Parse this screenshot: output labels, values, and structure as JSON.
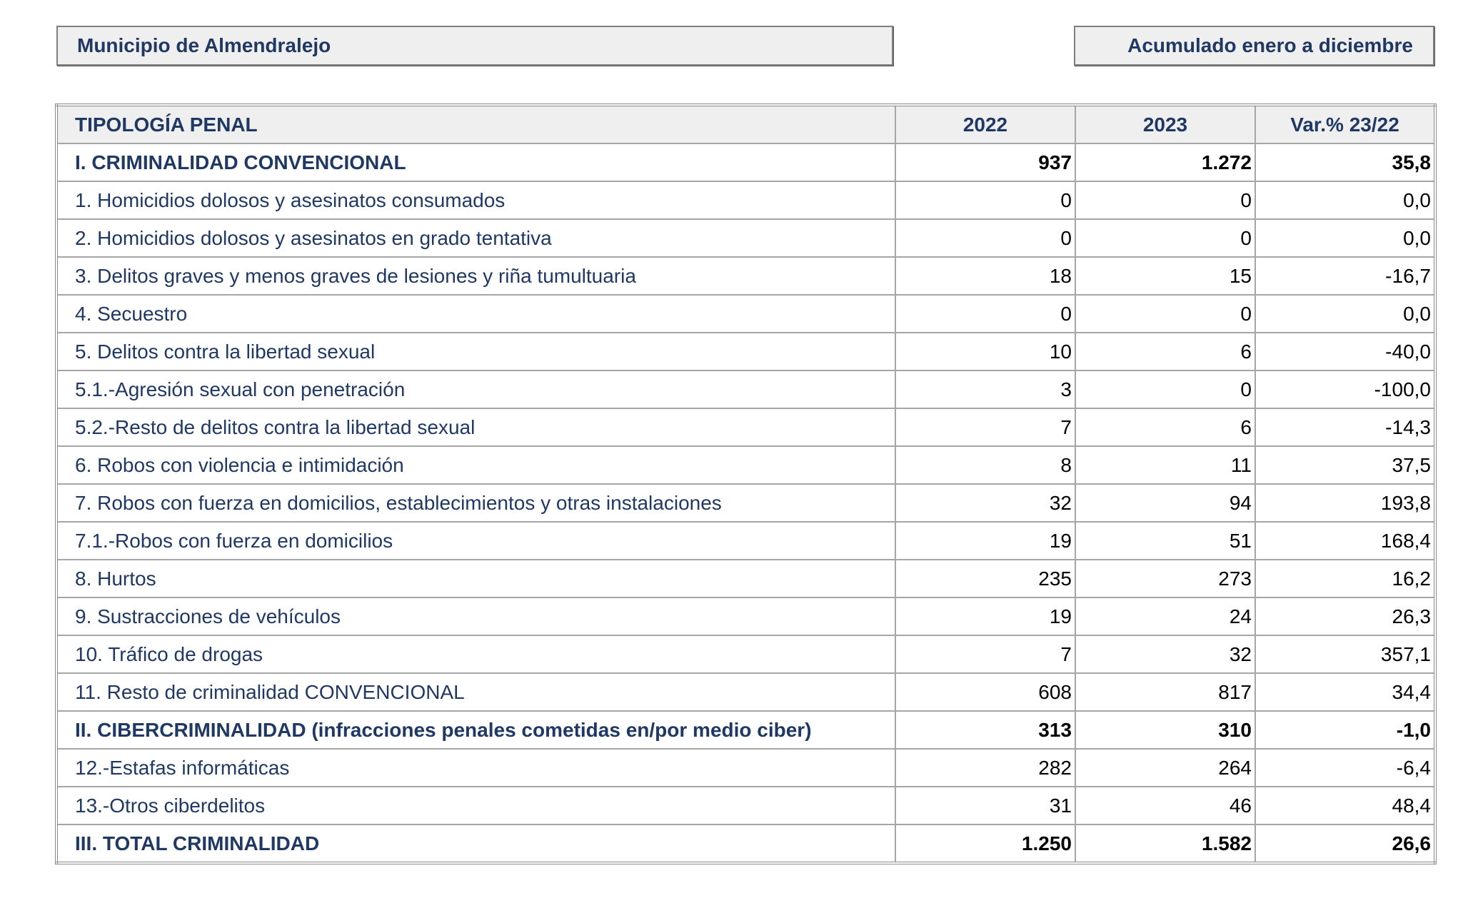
{
  "header": {
    "municipality": "Municipio de Almendralejo",
    "period": "Acumulado enero a diciembre"
  },
  "table": {
    "columns": [
      "TIPOLOGÍA PENAL",
      "2022",
      "2023",
      "Var.% 23/22"
    ],
    "rows": [
      [
        "I. CRIMINALIDAD CONVENCIONAL",
        "937",
        "1.272",
        "35,8"
      ],
      [
        "1. Homicidios dolosos y asesinatos consumados",
        "0",
        "0",
        "0,0"
      ],
      [
        "2. Homicidios dolosos y asesinatos en grado tentativa",
        "0",
        "0",
        "0,0"
      ],
      [
        "3. Delitos graves y menos graves de lesiones y riña tumultuaria",
        "18",
        "15",
        "-16,7"
      ],
      [
        "4. Secuestro",
        "0",
        "0",
        "0,0"
      ],
      [
        "5. Delitos contra la libertad sexual",
        "10",
        "6",
        "-40,0"
      ],
      [
        "5.1.-Agresión sexual con penetración",
        "3",
        "0",
        "-100,0"
      ],
      [
        "5.2.-Resto de delitos contra la libertad sexual",
        "7",
        "6",
        "-14,3"
      ],
      [
        "6. Robos con violencia e intimidación",
        "8",
        "11",
        "37,5"
      ],
      [
        "7. Robos con fuerza en domicilios, establecimientos y otras instalaciones",
        "32",
        "94",
        "193,8"
      ],
      [
        "7.1.-Robos con fuerza en domicilios",
        "19",
        "51",
        "168,4"
      ],
      [
        "8. Hurtos",
        "235",
        "273",
        "16,2"
      ],
      [
        "9. Sustracciones de vehículos",
        "19",
        "24",
        "26,3"
      ],
      [
        "10. Tráfico de drogas",
        "7",
        "32",
        "357,1"
      ],
      [
        "11. Resto de criminalidad CONVENCIONAL",
        "608",
        "817",
        "34,4"
      ],
      [
        "II. CIBERCRIMINALIDAD (infracciones penales cometidas en/por medio ciber)",
        "313",
        "310",
        "-1,0"
      ],
      [
        "12.-Estafas informáticas",
        "282",
        "264",
        "-6,4"
      ],
      [
        "13.-Otros ciberdelitos",
        "31",
        "46",
        "48,4"
      ],
      [
        "III. TOTAL CRIMINALIDAD",
        "1.250",
        "1.582",
        "26,6"
      ]
    ]
  }
}
